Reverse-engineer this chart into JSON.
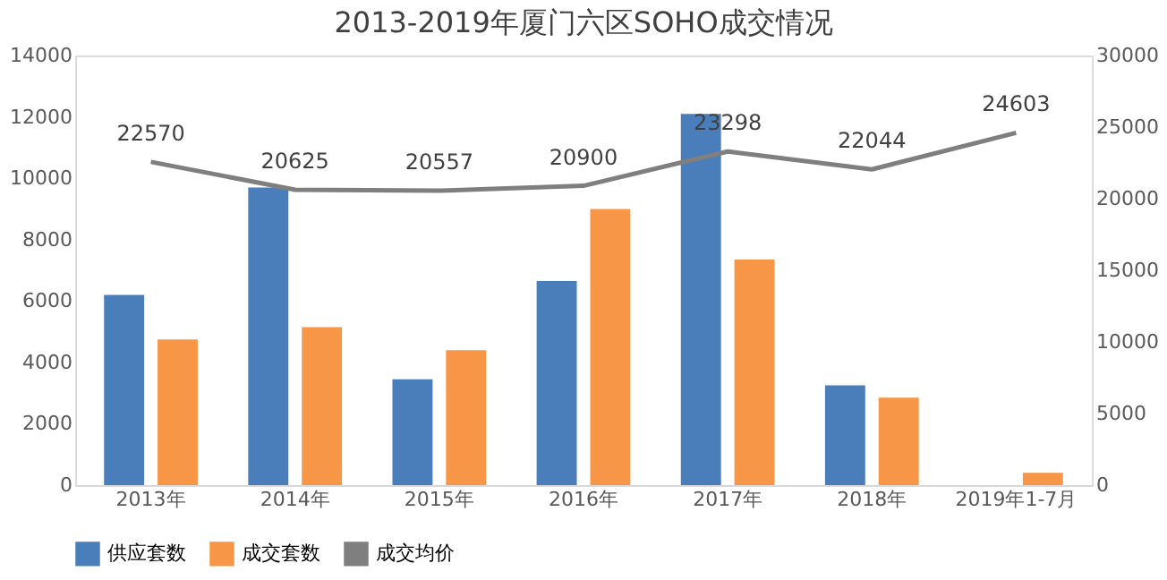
{
  "chart_data": {
    "type": "bar",
    "title": "2013-2019年厦门六区SOHO成交情况",
    "categories": [
      "2013年",
      "2014年",
      "2015年",
      "2016年",
      "2017年",
      "2018年",
      "2019年1-7月"
    ],
    "series": [
      {
        "name": "供应套数",
        "color": "#4a7ebb",
        "values": [
          6200,
          9700,
          3450,
          6650,
          12100,
          3250,
          null
        ]
      },
      {
        "name": "成交套数",
        "color": "#f79646",
        "values": [
          4750,
          5150,
          4400,
          9000,
          7350,
          2850,
          400
        ]
      },
      {
        "name": "成交均价",
        "type": "line",
        "axis": "y2",
        "color": "#7f7f7f",
        "values": [
          22570,
          20625,
          20557,
          20900,
          23298,
          22044,
          24603
        ],
        "value_labels": [
          "22570",
          "20625",
          "20557",
          "20900",
          "23298",
          "22044",
          "24603"
        ]
      }
    ],
    "ylim": [
      0,
      14000
    ],
    "yticks": [
      0,
      2000,
      4000,
      6000,
      8000,
      10000,
      12000,
      14000
    ],
    "y2lim": [
      0,
      30000
    ],
    "y2ticks": [
      0,
      5000,
      10000,
      15000,
      20000,
      25000,
      30000
    ],
    "grid": false,
    "legend": "bottom"
  }
}
